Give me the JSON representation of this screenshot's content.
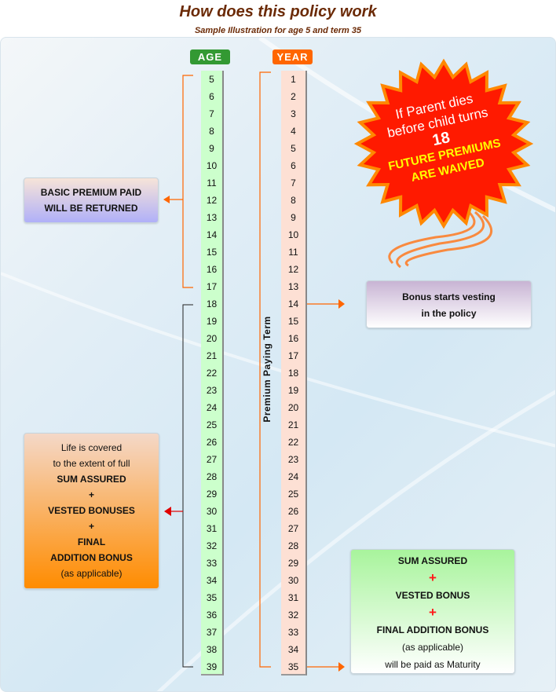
{
  "title": "How does this policy work",
  "subtitle": "Sample Illustration for age 5 and term 35",
  "age_header": "AGE",
  "year_header": "YEAR",
  "ages": [
    "5",
    "6",
    "7",
    "8",
    "9",
    "10",
    "11",
    "12",
    "13",
    "14",
    "15",
    "16",
    "17",
    "18",
    "19",
    "20",
    "21",
    "22",
    "23",
    "24",
    "25",
    "26",
    "27",
    "28",
    "29",
    "30",
    "31",
    "32",
    "33",
    "34",
    "35",
    "36",
    "37",
    "38",
    "39"
  ],
  "years": [
    "1",
    "2",
    "3",
    "4",
    "5",
    "6",
    "7",
    "8",
    "9",
    "10",
    "11",
    "12",
    "13",
    "14",
    "15",
    "16",
    "17",
    "18",
    "19",
    "20",
    "21",
    "22",
    "23",
    "24",
    "25",
    "26",
    "27",
    "28",
    "29",
    "30",
    "31",
    "32",
    "33",
    "34",
    "35"
  ],
  "premium_paying_term": "Premium Paying Term",
  "basic_premium": {
    "line1": "BASIC PREMIUM PAID",
    "line2": "WILL BE RETURNED"
  },
  "starburst": {
    "line1": "If Parent dies",
    "line2": "before child turns",
    "age": "18",
    "line3": "FUTURE PREMIUMS",
    "line4": "ARE WAIVED"
  },
  "bonus_box": {
    "line1": "Bonus starts vesting",
    "line2": "in the policy"
  },
  "life_box": {
    "line1": "Life is covered",
    "line2": "to the extent of full",
    "line3": "SUM ASSURED",
    "plus1": "+",
    "line4": "VESTED BONUSES",
    "plus2": "+",
    "line5": "FINAL",
    "line6": "ADDITION BONUS",
    "line7": "(as applicable)"
  },
  "maturity_box": {
    "line1": "SUM ASSURED",
    "plus1": "+",
    "line2": "VESTED BONUS",
    "plus2": "+",
    "line3": "FINAL ADDITION BONUS",
    "line4": "(as applicable)",
    "line5": "will be paid as Maturity"
  },
  "colors": {
    "age_header": "#339933",
    "year_header": "#ff6600",
    "age_col": "#ccffcc",
    "year_col": "#fde0d4",
    "bracket_orange": "#ff6600",
    "arrow_red": "#e00000",
    "starburst": "#ff1a00"
  }
}
